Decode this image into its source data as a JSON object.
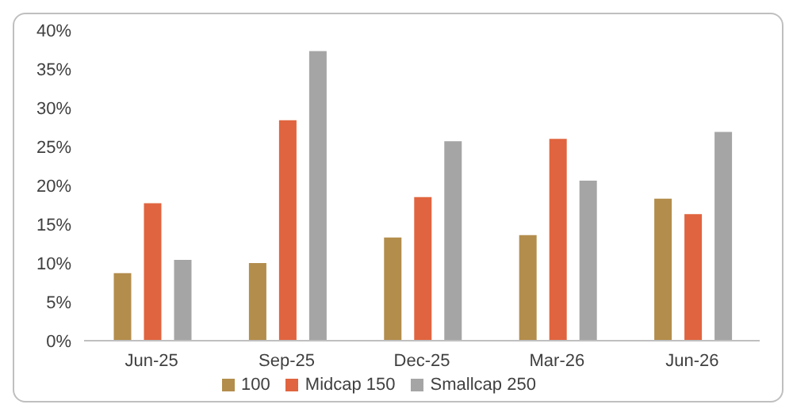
{
  "chart_data": {
    "type": "bar",
    "categories": [
      "Jun-25",
      "Sep-25",
      "Dec-25",
      "Mar-26",
      "Jun-26"
    ],
    "series": [
      {
        "name": "100",
        "color": "#b38d4c",
        "values": [
          8.7,
          10,
          13.3,
          13.6,
          18.3
        ]
      },
      {
        "name": "Midcap 150",
        "color": "#e0643f",
        "values": [
          17.7,
          28.4,
          18.5,
          26,
          16.3
        ]
      },
      {
        "name": "Smallcap 250",
        "color": "#a5a5a5",
        "values": [
          10.4,
          37.3,
          25.7,
          20.6,
          26.9
        ]
      }
    ],
    "ylim": [
      0,
      40
    ],
    "yticks": [
      {
        "value": 0,
        "label": "0%"
      },
      {
        "value": 5,
        "label": "5%"
      },
      {
        "value": 10,
        "label": "10%"
      },
      {
        "value": 15,
        "label": "15%"
      },
      {
        "value": 20,
        "label": "20%"
      },
      {
        "value": 25,
        "label": "25%"
      },
      {
        "value": 30,
        "label": "30%"
      },
      {
        "value": 35,
        "label": "35%"
      },
      {
        "value": 40,
        "label": "40%"
      }
    ],
    "grid": false,
    "legend": "bottom"
  }
}
